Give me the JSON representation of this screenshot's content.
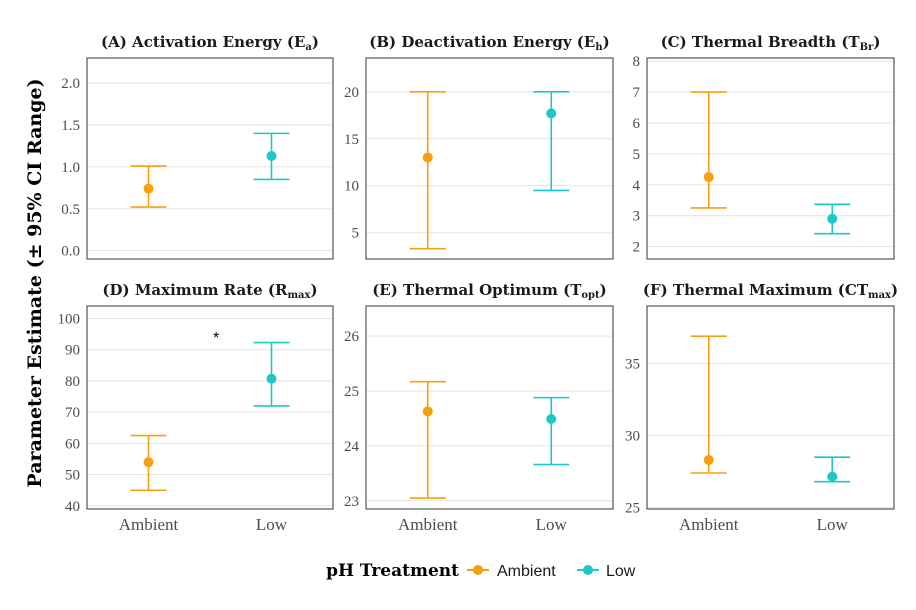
{
  "y_axis_label": "Parameter Estimate (± 95% CI Range)",
  "legend": {
    "title": "pH Treatment",
    "items": [
      {
        "label": "Ambient",
        "color": "#F5A00F"
      },
      {
        "label": "Low",
        "color": "#1EC8C8"
      }
    ]
  },
  "chart_data": [
    {
      "type": "errorbar",
      "title": "(A) Activation Energy (",
      "title_symbol": "E",
      "title_subscript": "a",
      "categories": [
        "Ambient",
        "Low"
      ],
      "series": [
        {
          "name": "Ambient",
          "estimate": 0.74,
          "ci_low": 0.52,
          "ci_high": 1.01
        },
        {
          "name": "Low",
          "estimate": 1.13,
          "ci_low": 0.85,
          "ci_high": 1.4
        }
      ],
      "ylim": [
        -0.1,
        2.3
      ],
      "yticks": [
        0.0,
        0.5,
        1.0,
        1.5,
        2.0
      ],
      "ytick_labels": [
        "0.0",
        "0.5",
        "1.0",
        "1.5",
        "2.0"
      ],
      "show_x_labels": false
    },
    {
      "type": "errorbar",
      "title": "(B) Deactivation Energy (",
      "title_symbol": "E",
      "title_subscript": "h",
      "categories": [
        "Ambient",
        "Low"
      ],
      "series": [
        {
          "name": "Ambient",
          "estimate": 13.0,
          "ci_low": 3.3,
          "ci_high": 20.0
        },
        {
          "name": "Low",
          "estimate": 17.7,
          "ci_low": 9.5,
          "ci_high": 20.0
        }
      ],
      "ylim": [
        2.2,
        23.6
      ],
      "yticks": [
        5,
        10,
        15,
        20
      ],
      "ytick_labels": [
        "5",
        "10",
        "15",
        "20"
      ],
      "show_x_labels": false
    },
    {
      "type": "errorbar",
      "title": "(C) Thermal Breadth (",
      "title_symbol": "T",
      "title_subscript": "Br",
      "categories": [
        "Ambient",
        "Low"
      ],
      "series": [
        {
          "name": "Ambient",
          "estimate": 4.25,
          "ci_low": 3.25,
          "ci_high": 7.0
        },
        {
          "name": "Low",
          "estimate": 2.9,
          "ci_low": 2.42,
          "ci_high": 3.37
        }
      ],
      "ylim": [
        1.6,
        8.1
      ],
      "yticks": [
        2,
        3,
        4,
        5,
        6,
        7,
        8
      ],
      "ytick_labels": [
        "2",
        "3",
        "4",
        "5",
        "6",
        "7",
        "8"
      ],
      "show_x_labels": false
    },
    {
      "type": "errorbar",
      "title": "(D) Maximum Rate (",
      "title_symbol": "R",
      "title_subscript": "max",
      "categories": [
        "Ambient",
        "Low"
      ],
      "series": [
        {
          "name": "Ambient",
          "estimate": 54.0,
          "ci_low": 45.0,
          "ci_high": 62.5
        },
        {
          "name": "Low",
          "estimate": 80.7,
          "ci_low": 72.0,
          "ci_high": 92.3
        }
      ],
      "ylim": [
        39,
        104
      ],
      "yticks": [
        40,
        50,
        60,
        70,
        80,
        90,
        100
      ],
      "ytick_labels": [
        "40",
        "50",
        "60",
        "70",
        "80",
        "90",
        "100"
      ],
      "annotation": {
        "text": "*",
        "x": 1.55,
        "y": 95
      },
      "show_x_labels": true
    },
    {
      "type": "errorbar",
      "title": "(E) Thermal Optimum (",
      "title_symbol": "T",
      "title_subscript": "opt",
      "categories": [
        "Ambient",
        "Low"
      ],
      "series": [
        {
          "name": "Ambient",
          "estimate": 24.63,
          "ci_low": 23.05,
          "ci_high": 25.17
        },
        {
          "name": "Low",
          "estimate": 24.49,
          "ci_low": 23.66,
          "ci_high": 24.88
        }
      ],
      "ylim": [
        22.85,
        26.55
      ],
      "yticks": [
        23,
        24,
        25,
        26
      ],
      "ytick_labels": [
        "23",
        "24",
        "25",
        "26"
      ],
      "show_x_labels": true
    },
    {
      "type": "errorbar",
      "title": "(F) Thermal Maximum (",
      "title_symbol": "CT",
      "title_subscript": "max",
      "categories": [
        "Ambient",
        "Low"
      ],
      "series": [
        {
          "name": "Ambient",
          "estimate": 28.3,
          "ci_low": 27.4,
          "ci_high": 36.9
        },
        {
          "name": "Low",
          "estimate": 27.15,
          "ci_low": 26.8,
          "ci_high": 28.5
        }
      ],
      "ylim": [
        24.9,
        39.0
      ],
      "yticks": [
        25,
        30,
        35
      ],
      "ytick_labels": [
        "25",
        "30",
        "35"
      ],
      "show_x_labels": true
    }
  ]
}
